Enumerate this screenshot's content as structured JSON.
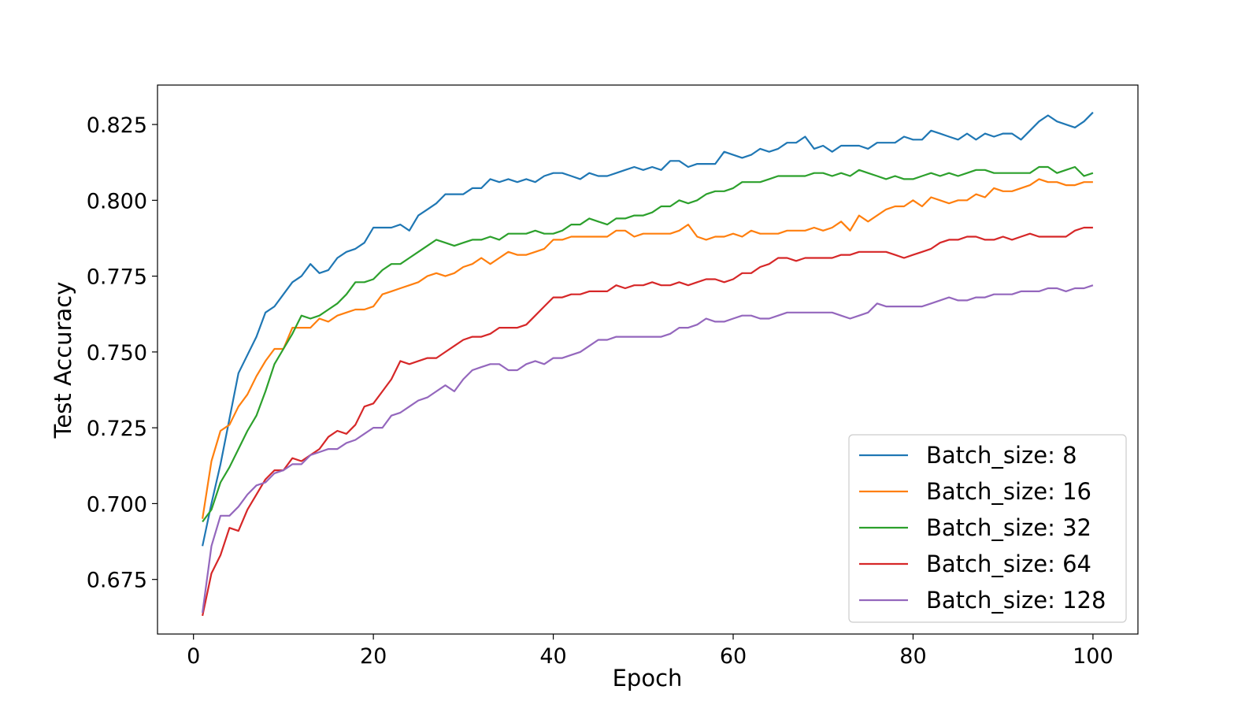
{
  "chart_data": {
    "type": "line",
    "title": "",
    "xlabel": "Epoch",
    "ylabel": "Test Accuracy",
    "xlim": [
      -4,
      105
    ],
    "ylim": [
      0.657,
      0.838
    ],
    "x_ticks": [
      0,
      20,
      40,
      60,
      80,
      100
    ],
    "x_tick_labels": [
      "0",
      "20",
      "40",
      "60",
      "80",
      "100"
    ],
    "y_ticks": [
      0.675,
      0.7,
      0.725,
      0.75,
      0.775,
      0.8,
      0.825
    ],
    "y_tick_labels": [
      "0.675",
      "0.700",
      "0.725",
      "0.750",
      "0.775",
      "0.800",
      "0.825"
    ],
    "grid": false,
    "legend_position": "lower-right",
    "x": [
      1,
      2,
      3,
      4,
      5,
      6,
      7,
      8,
      9,
      10,
      11,
      12,
      13,
      14,
      15,
      16,
      17,
      18,
      19,
      20,
      21,
      22,
      23,
      24,
      25,
      26,
      27,
      28,
      29,
      30,
      31,
      32,
      33,
      34,
      35,
      36,
      37,
      38,
      39,
      40,
      41,
      42,
      43,
      44,
      45,
      46,
      47,
      48,
      49,
      50,
      51,
      52,
      53,
      54,
      55,
      56,
      57,
      58,
      59,
      60,
      61,
      62,
      63,
      64,
      65,
      66,
      67,
      68,
      69,
      70,
      71,
      72,
      73,
      74,
      75,
      76,
      77,
      78,
      79,
      80,
      81,
      82,
      83,
      84,
      85,
      86,
      87,
      88,
      89,
      90,
      91,
      92,
      93,
      94,
      95,
      96,
      97,
      98,
      99,
      100
    ],
    "series": [
      {
        "name": "Batch_size: 8",
        "color": "#1f77b4",
        "values": [
          0.686,
          0.7,
          0.713,
          0.728,
          0.743,
          0.749,
          0.755,
          0.763,
          0.765,
          0.769,
          0.773,
          0.775,
          0.779,
          0.776,
          0.777,
          0.781,
          0.783,
          0.784,
          0.786,
          0.791,
          0.791,
          0.791,
          0.792,
          0.79,
          0.795,
          0.797,
          0.799,
          0.802,
          0.802,
          0.802,
          0.804,
          0.804,
          0.807,
          0.806,
          0.807,
          0.806,
          0.807,
          0.806,
          0.808,
          0.809,
          0.809,
          0.808,
          0.807,
          0.809,
          0.808,
          0.808,
          0.809,
          0.81,
          0.811,
          0.81,
          0.811,
          0.81,
          0.813,
          0.813,
          0.811,
          0.812,
          0.812,
          0.812,
          0.816,
          0.815,
          0.814,
          0.815,
          0.817,
          0.816,
          0.817,
          0.819,
          0.819,
          0.821,
          0.817,
          0.818,
          0.816,
          0.818,
          0.818,
          0.818,
          0.817,
          0.819,
          0.819,
          0.819,
          0.821,
          0.82,
          0.82,
          0.823,
          0.822,
          0.821,
          0.82,
          0.822,
          0.82,
          0.822,
          0.821,
          0.822,
          0.822,
          0.82,
          0.823,
          0.826,
          0.828,
          0.826,
          0.825,
          0.824,
          0.826,
          0.829
        ]
      },
      {
        "name": "Batch_size: 16",
        "color": "#ff7f0e",
        "values": [
          0.695,
          0.714,
          0.724,
          0.726,
          0.732,
          0.736,
          0.742,
          0.747,
          0.751,
          0.751,
          0.758,
          0.758,
          0.758,
          0.761,
          0.76,
          0.762,
          0.763,
          0.764,
          0.764,
          0.765,
          0.769,
          0.77,
          0.771,
          0.772,
          0.773,
          0.775,
          0.776,
          0.775,
          0.776,
          0.778,
          0.779,
          0.781,
          0.779,
          0.781,
          0.783,
          0.782,
          0.782,
          0.783,
          0.784,
          0.787,
          0.787,
          0.788,
          0.788,
          0.788,
          0.788,
          0.788,
          0.79,
          0.79,
          0.788,
          0.789,
          0.789,
          0.789,
          0.789,
          0.79,
          0.792,
          0.788,
          0.787,
          0.788,
          0.788,
          0.789,
          0.788,
          0.79,
          0.789,
          0.789,
          0.789,
          0.79,
          0.79,
          0.79,
          0.791,
          0.79,
          0.791,
          0.793,
          0.79,
          0.795,
          0.793,
          0.795,
          0.797,
          0.798,
          0.798,
          0.8,
          0.798,
          0.801,
          0.8,
          0.799,
          0.8,
          0.8,
          0.802,
          0.801,
          0.804,
          0.803,
          0.803,
          0.804,
          0.805,
          0.807,
          0.806,
          0.806,
          0.805,
          0.805,
          0.806,
          0.806
        ]
      },
      {
        "name": "Batch_size: 32",
        "color": "#2ca02c",
        "values": [
          0.694,
          0.698,
          0.707,
          0.712,
          0.718,
          0.724,
          0.729,
          0.737,
          0.746,
          0.751,
          0.756,
          0.762,
          0.761,
          0.762,
          0.764,
          0.766,
          0.769,
          0.773,
          0.773,
          0.774,
          0.777,
          0.779,
          0.779,
          0.781,
          0.783,
          0.785,
          0.787,
          0.786,
          0.785,
          0.786,
          0.787,
          0.787,
          0.788,
          0.787,
          0.789,
          0.789,
          0.789,
          0.79,
          0.789,
          0.789,
          0.79,
          0.792,
          0.792,
          0.794,
          0.793,
          0.792,
          0.794,
          0.794,
          0.795,
          0.795,
          0.796,
          0.798,
          0.798,
          0.8,
          0.799,
          0.8,
          0.802,
          0.803,
          0.803,
          0.804,
          0.806,
          0.806,
          0.806,
          0.807,
          0.808,
          0.808,
          0.808,
          0.808,
          0.809,
          0.809,
          0.808,
          0.809,
          0.808,
          0.81,
          0.809,
          0.808,
          0.807,
          0.808,
          0.807,
          0.807,
          0.808,
          0.809,
          0.808,
          0.809,
          0.808,
          0.809,
          0.81,
          0.81,
          0.809,
          0.809,
          0.809,
          0.809,
          0.809,
          0.811,
          0.811,
          0.809,
          0.81,
          0.811,
          0.808,
          0.809
        ]
      },
      {
        "name": "Batch_size: 64",
        "color": "#d62728",
        "values": [
          0.663,
          0.677,
          0.683,
          0.692,
          0.691,
          0.698,
          0.703,
          0.708,
          0.711,
          0.711,
          0.715,
          0.714,
          0.716,
          0.718,
          0.722,
          0.724,
          0.723,
          0.726,
          0.732,
          0.733,
          0.737,
          0.741,
          0.747,
          0.746,
          0.747,
          0.748,
          0.748,
          0.75,
          0.752,
          0.754,
          0.755,
          0.755,
          0.756,
          0.758,
          0.758,
          0.758,
          0.759,
          0.762,
          0.765,
          0.768,
          0.768,
          0.769,
          0.769,
          0.77,
          0.77,
          0.77,
          0.772,
          0.771,
          0.772,
          0.772,
          0.773,
          0.772,
          0.772,
          0.773,
          0.772,
          0.773,
          0.774,
          0.774,
          0.773,
          0.774,
          0.776,
          0.776,
          0.778,
          0.779,
          0.781,
          0.781,
          0.78,
          0.781,
          0.781,
          0.781,
          0.781,
          0.782,
          0.782,
          0.783,
          0.783,
          0.783,
          0.783,
          0.782,
          0.781,
          0.782,
          0.783,
          0.784,
          0.786,
          0.787,
          0.787,
          0.788,
          0.788,
          0.787,
          0.787,
          0.788,
          0.787,
          0.788,
          0.789,
          0.788,
          0.788,
          0.788,
          0.788,
          0.79,
          0.791,
          0.791
        ]
      },
      {
        "name": "Batch_size: 128",
        "color": "#9467bd",
        "values": [
          0.664,
          0.686,
          0.696,
          0.696,
          0.699,
          0.703,
          0.706,
          0.707,
          0.71,
          0.711,
          0.713,
          0.713,
          0.716,
          0.717,
          0.718,
          0.718,
          0.72,
          0.721,
          0.723,
          0.725,
          0.725,
          0.729,
          0.73,
          0.732,
          0.734,
          0.735,
          0.737,
          0.739,
          0.737,
          0.741,
          0.744,
          0.745,
          0.746,
          0.746,
          0.744,
          0.744,
          0.746,
          0.747,
          0.746,
          0.748,
          0.748,
          0.749,
          0.75,
          0.752,
          0.754,
          0.754,
          0.755,
          0.755,
          0.755,
          0.755,
          0.755,
          0.755,
          0.756,
          0.758,
          0.758,
          0.759,
          0.761,
          0.76,
          0.76,
          0.761,
          0.762,
          0.762,
          0.761,
          0.761,
          0.762,
          0.763,
          0.763,
          0.763,
          0.763,
          0.763,
          0.763,
          0.762,
          0.761,
          0.762,
          0.763,
          0.766,
          0.765,
          0.765,
          0.765,
          0.765,
          0.765,
          0.766,
          0.767,
          0.768,
          0.767,
          0.767,
          0.768,
          0.768,
          0.769,
          0.769,
          0.769,
          0.77,
          0.77,
          0.77,
          0.771,
          0.771,
          0.77,
          0.771,
          0.771,
          0.772
        ]
      }
    ]
  }
}
